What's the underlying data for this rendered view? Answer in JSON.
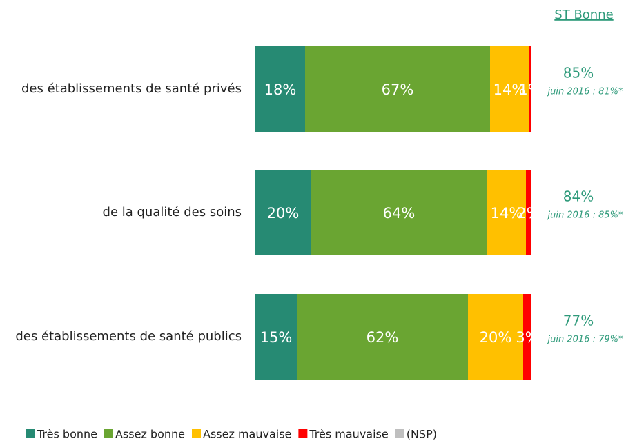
{
  "chart_data": {
    "type": "stacked-bar-horizontal",
    "categories": [
      "des établissements de santé privés",
      "de la qualité des soins",
      "des établissements de santé publics"
    ],
    "xlim": [
      0,
      100
    ],
    "series": [
      {
        "name": "Très bonne",
        "color": "#268a73",
        "values": [
          18,
          20,
          15
        ],
        "value_labels": [
          "18%",
          "20%",
          "15%"
        ]
      },
      {
        "name": "Assez bonne",
        "color": "#6aa532",
        "values": [
          67,
          64,
          62
        ],
        "value_labels": [
          "67%",
          "64%",
          "62%"
        ]
      },
      {
        "name": "Assez mauvaise",
        "color": "#ffc000",
        "values": [
          14,
          14,
          20
        ],
        "value_labels": [
          "14%",
          "14%",
          "20%"
        ]
      },
      {
        "name": "Très mauvaise",
        "color": "#ff0000",
        "values": [
          1,
          2,
          3
        ],
        "value_labels": [
          "1%",
          "2%",
          "3%"
        ]
      },
      {
        "name": "(NSP)",
        "color": "#bfbfbf",
        "values": [
          0,
          0,
          0
        ]
      }
    ],
    "st_bonne": {
      "title": "ST Bonne",
      "values": [
        85,
        84,
        77
      ],
      "value_labels": [
        "85%",
        "84%",
        "77%"
      ],
      "previous": [
        "juin 2016 : 81%*",
        "juin 2016 : 85%*",
        "juin 2016 : 79%*"
      ]
    },
    "legend": "bottom-left"
  }
}
